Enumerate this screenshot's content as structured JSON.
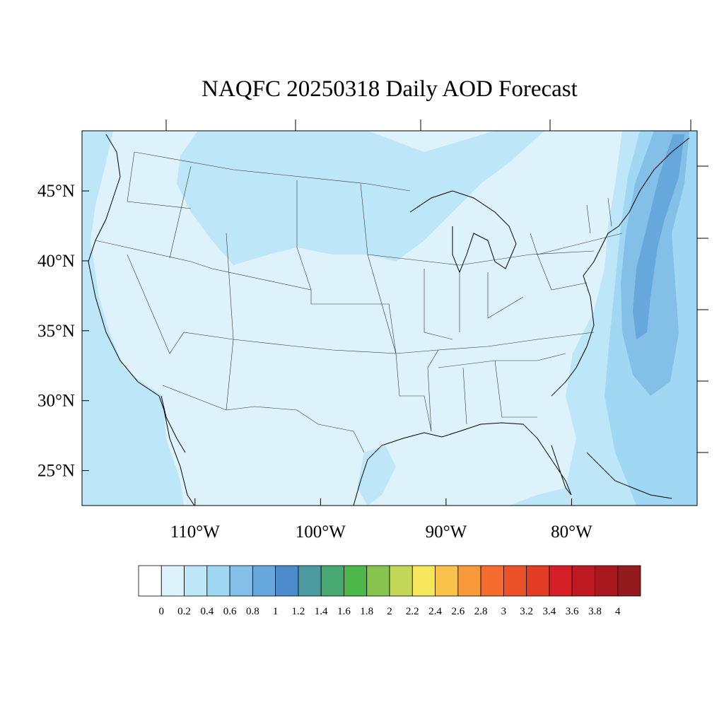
{
  "title": "NAQFC 20250318 Daily AOD Forecast",
  "map": {
    "lon_range": [
      -119,
      -70
    ],
    "lat_range": [
      22.5,
      49.3
    ],
    "lat_labels": [
      "45°N",
      "40°N",
      "35°N",
      "30°N",
      "25°N"
    ],
    "lat_values": [
      45,
      40,
      35,
      30,
      25
    ],
    "lon_labels": [
      "110°W",
      "100°W",
      "90°W",
      "80°W"
    ],
    "lon_values": [
      -110,
      -100,
      -90,
      -80
    ]
  },
  "colorbar": {
    "tick_labels": [
      "0",
      "0.2",
      "0.4",
      "0.6",
      "0.8",
      "1",
      "1.2",
      "1.4",
      "1.6",
      "1.8",
      "2",
      "2.2",
      "2.4",
      "2.6",
      "2.8",
      "3",
      "3.2",
      "3.4",
      "3.6",
      "3.8",
      "4"
    ],
    "colors": [
      "#ffffff",
      "#def2fb",
      "#bde6f8",
      "#a0d8f4",
      "#83bfe6",
      "#66a7dc",
      "#4d8ccc",
      "#4b9aa0",
      "#48a872",
      "#4cb84a",
      "#86c44d",
      "#c4d657",
      "#f6e75c",
      "#f9c24a",
      "#f89a3c",
      "#f56c2e",
      "#ec5229",
      "#e33d26",
      "#d51f26",
      "#bd1a23",
      "#a8191f",
      "#931a1d"
    ]
  }
}
